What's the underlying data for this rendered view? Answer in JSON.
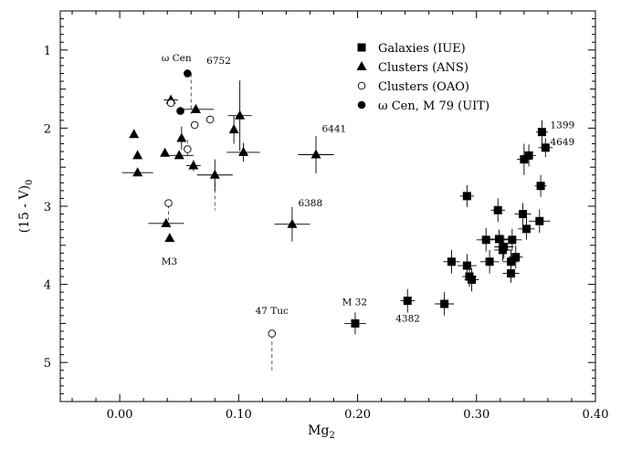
{
  "chart_data": {
    "type": "scatter",
    "xlabel": "Mg",
    "xlabel_sub": "2",
    "ylabel": "(15 - V)",
    "ylabel_sub": "0",
    "xlim": [
      -0.05,
      0.4
    ],
    "ylim": [
      5.5,
      0.5
    ],
    "y_inverted": true,
    "grid": false,
    "legend_position": "top-right",
    "xticks": [
      0.0,
      0.1,
      0.2,
      0.3,
      0.4
    ],
    "xtick_labels": [
      "0.00",
      "0.10",
      "0.20",
      "0.30",
      "0.40"
    ],
    "yticks": [
      1,
      2,
      3,
      4,
      5
    ],
    "ytick_labels": [
      "1",
      "2",
      "3",
      "4",
      "5"
    ],
    "legend": [
      {
        "label": "Galaxies (IUE)",
        "marker": "square-filled"
      },
      {
        "label": "Clusters (ANS)",
        "marker": "triangle-filled"
      },
      {
        "label": "Clusters (OAO)",
        "marker": "circle-open"
      },
      {
        "label": "ω Cen, M 79 (UIT)",
        "marker": "circle-filled"
      }
    ],
    "series": [
      {
        "name": "Galaxies (IUE)",
        "marker": "square-filled",
        "points": [
          {
            "x": 0.355,
            "y": 2.05,
            "xerr": 0.005,
            "yerr": 0.15
          },
          {
            "x": 0.358,
            "y": 2.25,
            "xerr": 0.006,
            "yerr": 0.12
          },
          {
            "x": 0.34,
            "y": 2.4,
            "xerr": 0.006,
            "yerr": 0.2
          },
          {
            "x": 0.344,
            "y": 2.35,
            "xerr": 0.006,
            "yerr": 0.14
          },
          {
            "x": 0.354,
            "y": 2.74,
            "xerr": 0.005,
            "yerr": 0.14
          },
          {
            "x": 0.292,
            "y": 2.87,
            "xerr": 0.006,
            "yerr": 0.14
          },
          {
            "x": 0.318,
            "y": 3.05,
            "xerr": 0.006,
            "yerr": 0.15
          },
          {
            "x": 0.339,
            "y": 3.1,
            "xerr": 0.007,
            "yerr": 0.14
          },
          {
            "x": 0.353,
            "y": 3.19,
            "xerr": 0.009,
            "yerr": 0.15
          },
          {
            "x": 0.342,
            "y": 3.29,
            "xerr": 0.007,
            "yerr": 0.14
          },
          {
            "x": 0.323,
            "y": 3.52,
            "xerr": 0.008,
            "yerr": 0.15
          },
          {
            "x": 0.319,
            "y": 3.42,
            "xerr": 0.008,
            "yerr": 0.12
          },
          {
            "x": 0.322,
            "y": 3.56,
            "xerr": 0.007,
            "yerr": 0.14
          },
          {
            "x": 0.33,
            "y": 3.43,
            "xerr": 0.008,
            "yerr": 0.14
          },
          {
            "x": 0.308,
            "y": 3.43,
            "xerr": 0.008,
            "yerr": 0.15
          },
          {
            "x": 0.333,
            "y": 3.65,
            "xerr": 0.006,
            "yerr": 0.15
          },
          {
            "x": 0.329,
            "y": 3.71,
            "xerr": 0.007,
            "yerr": 0.15
          },
          {
            "x": 0.311,
            "y": 3.71,
            "xerr": 0.008,
            "yerr": 0.15
          },
          {
            "x": 0.279,
            "y": 3.71,
            "xerr": 0.007,
            "yerr": 0.15
          },
          {
            "x": 0.292,
            "y": 3.76,
            "xerr": 0.008,
            "yerr": 0.15
          },
          {
            "x": 0.329,
            "y": 3.86,
            "xerr": 0.007,
            "yerr": 0.12
          },
          {
            "x": 0.294,
            "y": 3.9,
            "xerr": 0.006,
            "yerr": 0.13
          },
          {
            "x": 0.296,
            "y": 3.94,
            "xerr": 0.006,
            "yerr": 0.15
          },
          {
            "x": 0.273,
            "y": 4.25,
            "xerr": 0.008,
            "yerr": 0.15
          },
          {
            "x": 0.242,
            "y": 4.21,
            "xerr": 0.006,
            "yerr": 0.15
          },
          {
            "x": 0.198,
            "y": 4.5,
            "xerr": 0.009,
            "yerr": 0.14
          }
        ]
      },
      {
        "name": "Clusters (ANS)",
        "marker": "triangle-filled",
        "points": [
          {
            "x": 0.012,
            "y": 2.08,
            "xerr": 0.0,
            "yerr": 0.0
          },
          {
            "x": 0.015,
            "y": 2.35,
            "xerr": 0.0,
            "yerr": 0.0
          },
          {
            "x": 0.015,
            "y": 2.57,
            "xerr": 0.013,
            "yerr": 0.0
          },
          {
            "x": 0.043,
            "y": 1.64,
            "xerr": 0.006,
            "yerr": 0.0
          },
          {
            "x": 0.052,
            "y": 2.13,
            "xerr": 0.0,
            "yerr": 0.15
          },
          {
            "x": 0.038,
            "y": 2.32,
            "xerr": 0.0,
            "yerr": 0.0
          },
          {
            "x": 0.05,
            "y": 2.35,
            "xerr": 0.012,
            "yerr": 0.0
          },
          {
            "x": 0.062,
            "y": 2.48,
            "xerr": 0.006,
            "yerr": 0.07
          },
          {
            "x": 0.064,
            "y": 1.76,
            "xerr": 0.015,
            "yerr": 0.0
          },
          {
            "x": 0.08,
            "y": 2.6,
            "xerr": 0.015,
            "yerr": 0.2
          },
          {
            "x": 0.096,
            "y": 2.02,
            "xerr": 0.0,
            "yerr": 0.18
          },
          {
            "x": 0.101,
            "y": 1.84,
            "xerr": 0.01,
            "yerr": 0.45
          },
          {
            "x": 0.104,
            "y": 2.31,
            "xerr": 0.014,
            "yerr": 0.12
          },
          {
            "x": 0.039,
            "y": 3.22,
            "xerr": 0.015,
            "yerr": 0.0
          },
          {
            "x": 0.042,
            "y": 3.41,
            "xerr": 0.0,
            "yerr": 0.0
          },
          {
            "x": 0.145,
            "y": 3.23,
            "xerr": 0.015,
            "yerr": 0.22
          },
          {
            "x": 0.165,
            "y": 2.34,
            "xerr": 0.015,
            "yerr": 0.24
          }
        ]
      },
      {
        "name": "Clusters (OAO)",
        "marker": "circle-open",
        "points": [
          {
            "x": 0.043,
            "y": 1.68,
            "xerr": 0.0,
            "yerr": 0.0
          },
          {
            "x": 0.063,
            "y": 1.96,
            "xerr": 0.0,
            "yerr": 0.0
          },
          {
            "x": 0.076,
            "y": 1.89,
            "xerr": 0.0,
            "yerr": 0.0
          },
          {
            "x": 0.057,
            "y": 2.27,
            "xerr": 0.0,
            "yerr": 0.0
          },
          {
            "x": 0.041,
            "y": 2.96,
            "xerr": 0.0,
            "yerr": 0.0
          },
          {
            "x": 0.128,
            "y": 4.63,
            "xerr": 0.0,
            "yerr": 0.0
          }
        ]
      },
      {
        "name": "ω Cen, M 79 (UIT)",
        "marker": "circle-filled",
        "points": [
          {
            "x": 0.057,
            "y": 1.3,
            "xerr": 0.0,
            "yerr": 0.0
          },
          {
            "x": 0.051,
            "y": 1.78,
            "xerr": 0.0,
            "yerr": 0.0
          }
        ]
      }
    ],
    "dashed_links": [
      {
        "x": 0.06,
        "y1": 1.3,
        "y2": 1.82
      },
      {
        "x": 0.057,
        "y1": 2.15,
        "y2": 2.4
      },
      {
        "x": 0.08,
        "y1": 2.7,
        "y2": 3.05
      },
      {
        "x": 0.041,
        "y1": 2.98,
        "y2": 3.18
      },
      {
        "x": 0.128,
        "y1": 4.65,
        "y2": 5.1
      }
    ],
    "annotations": [
      {
        "text": "ω Cen",
        "x": 0.035,
        "y": 1.14
      },
      {
        "text": "6752",
        "x": 0.073,
        "y": 1.18
      },
      {
        "text": "6441",
        "x": 0.17,
        "y": 2.05
      },
      {
        "text": "6388",
        "x": 0.15,
        "y": 3.0
      },
      {
        "text": "M3",
        "x": 0.035,
        "y": 3.75
      },
      {
        "text": "47 Tuc",
        "x": 0.114,
        "y": 4.38
      },
      {
        "text": "M 32",
        "x": 0.187,
        "y": 4.27
      },
      {
        "text": "4382",
        "x": 0.232,
        "y": 4.48
      },
      {
        "text": "1399",
        "x": 0.362,
        "y": 2.0
      },
      {
        "text": "4649",
        "x": 0.362,
        "y": 2.22
      }
    ]
  }
}
